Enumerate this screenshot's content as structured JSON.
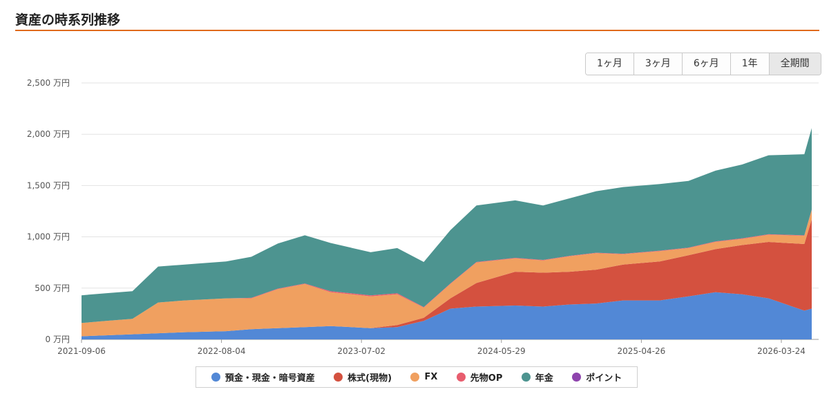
{
  "page": {
    "title": "資産の時系列推移",
    "accent_color": "#e06a1b"
  },
  "range_buttons": [
    {
      "label": "1ヶ月",
      "active": false
    },
    {
      "label": "3ヶ月",
      "active": false
    },
    {
      "label": "6ヶ月",
      "active": false
    },
    {
      "label": "1年",
      "active": false
    },
    {
      "label": "全期間",
      "active": true
    }
  ],
  "chart_data": {
    "type": "area",
    "stacked": true,
    "title": "",
    "xlabel": "",
    "ylabel": "",
    "y_unit": "万円",
    "ylim": [
      0,
      2500
    ],
    "y_ticks": [
      0,
      500,
      1000,
      1500,
      2000,
      2500
    ],
    "y_tick_labels": [
      "0 万円",
      "500 万円",
      "1,000 万円",
      "1,500 万円",
      "2,000 万円",
      "2,500 万円"
    ],
    "x_tick_labels": [
      "2021-09-06",
      "2022-08-04",
      "2023-07-02",
      "2024-05-29",
      "2025-04-26",
      "2026-03-24"
    ],
    "grid": true,
    "legend_position": "bottom",
    "x": [
      "2021-09-06",
      "2021-11-01",
      "2022-01-01",
      "2022-03-01",
      "2022-05-01",
      "2022-08-04",
      "2022-10-01",
      "2022-12-01",
      "2023-02-01",
      "2023-04-01",
      "2023-07-02",
      "2023-09-01",
      "2023-11-01",
      "2024-01-01",
      "2024-03-01",
      "2024-05-29",
      "2024-08-01",
      "2024-10-01",
      "2024-12-01",
      "2025-02-01",
      "2025-04-26",
      "2025-07-01",
      "2025-09-01",
      "2025-11-01",
      "2026-01-01",
      "2026-03-24",
      "2026-04-10"
    ],
    "series": [
      {
        "name": "預金・現金・暗号資産",
        "color": "#5288d6",
        "values": [
          30,
          40,
          50,
          60,
          70,
          80,
          100,
          110,
          120,
          130,
          110,
          120,
          180,
          300,
          320,
          330,
          320,
          340,
          350,
          380,
          380,
          420,
          460,
          440,
          400,
          280,
          300
        ]
      },
      {
        "name": "株式(現物)",
        "color": "#d4513f",
        "values": [
          0,
          0,
          0,
          0,
          0,
          0,
          0,
          0,
          0,
          0,
          0,
          20,
          30,
          100,
          230,
          330,
          330,
          320,
          330,
          350,
          380,
          400,
          420,
          480,
          550,
          650,
          870
        ]
      },
      {
        "name": "FX",
        "color": "#f0a060",
        "values": [
          130,
          140,
          150,
          300,
          310,
          320,
          300,
          380,
          420,
          330,
          310,
          300,
          100,
          140,
          200,
          130,
          120,
          150,
          160,
          100,
          100,
          70,
          70,
          60,
          70,
          80,
          90
        ]
      },
      {
        "name": "先物OP",
        "color": "#e85d6e",
        "values": [
          0,
          0,
          0,
          0,
          0,
          0,
          5,
          5,
          5,
          10,
          10,
          10,
          5,
          5,
          5,
          5,
          5,
          5,
          5,
          5,
          5,
          5,
          5,
          5,
          5,
          5,
          5
        ]
      },
      {
        "name": "年金",
        "color": "#4d9490",
        "values": [
          270,
          270,
          270,
          350,
          350,
          360,
          400,
          440,
          470,
          470,
          420,
          440,
          440,
          520,
          550,
          560,
          530,
          560,
          600,
          650,
          650,
          650,
          690,
          720,
          770,
          790,
          795
        ]
      },
      {
        "name": "ポイント",
        "color": "#8e44ad",
        "values": [
          0,
          0,
          0,
          0,
          0,
          0,
          0,
          0,
          0,
          0,
          0,
          0,
          0,
          0,
          0,
          0,
          0,
          0,
          0,
          0,
          0,
          0,
          0,
          0,
          0,
          0,
          0
        ]
      }
    ]
  }
}
